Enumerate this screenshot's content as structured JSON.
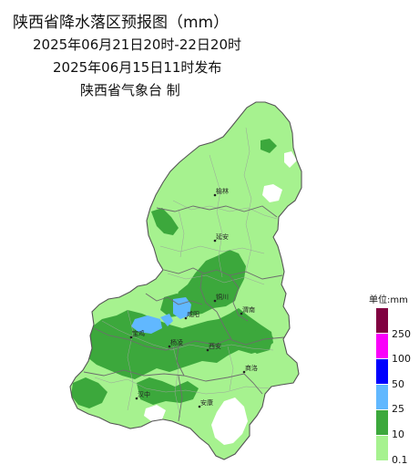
{
  "title": {
    "line1": "陕西省降水落区预报图（mm）",
    "line2": "2025年06月21日20时-22日20时",
    "line3": "2025年06月15日11时发布",
    "line4": "陕西省气象台  制"
  },
  "legend": {
    "unit": "单位:mm",
    "levels": [
      {
        "label": "250",
        "color": "#800040"
      },
      {
        "label": "100",
        "color": "#fa00fa"
      },
      {
        "label": "50",
        "color": "#0000fe"
      },
      {
        "label": "25",
        "color": "#61b8ff"
      },
      {
        "label": "10",
        "color": "#3ca83c"
      },
      {
        "label": "0.1",
        "color": "#a6f28f"
      }
    ]
  },
  "cities": {
    "yulin": "榆林",
    "yanan": "延安",
    "tongchuan": "铜川",
    "weinan": "渭南",
    "xianyang": "咸阳",
    "baoji": "宝鸡",
    "xian": "西安",
    "shangluo": "商洛",
    "hanzhong": "汉中",
    "ankang": "安康",
    "yangling": "杨凌"
  }
}
